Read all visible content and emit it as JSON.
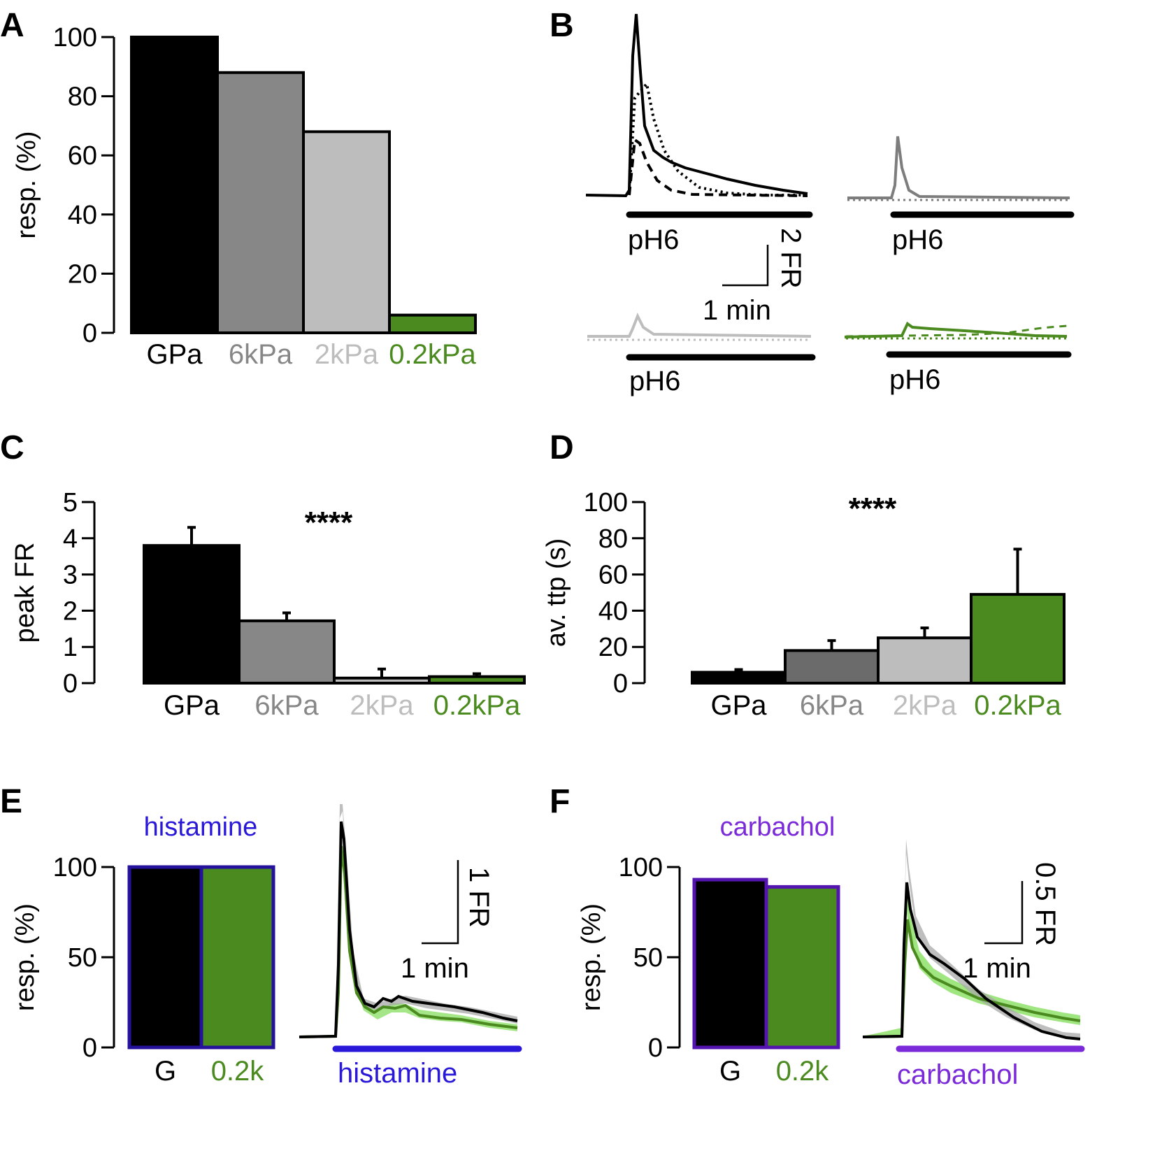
{
  "colors": {
    "gpa": "#000000",
    "k6": "#878787",
    "k2": "#bdbdbd",
    "k02": "#4a8a1e",
    "k02_light": "#8ee06a",
    "k6_bar_D": "#6b6b6b",
    "histamine": "#2a18d8",
    "histamine_bar_edge": "#24129c",
    "carbachol": "#7a2ad8",
    "carbachol_bar_edge": "#5414b0"
  },
  "panels": {
    "A": "A",
    "B": "B",
    "C": "C",
    "D": "D",
    "E": "E",
    "F": "F"
  },
  "chart_data": [
    {
      "id": "A",
      "type": "bar",
      "ylabel": "resp. (%)",
      "ylim": [
        0,
        100
      ],
      "yticks": [
        "0",
        "20",
        "40",
        "60",
        "80",
        "100"
      ],
      "categories": [
        "GPa",
        "6kPa",
        "2kPa",
        "0.2kPa"
      ],
      "values": [
        100,
        88,
        68,
        6
      ]
    },
    {
      "id": "B",
      "type": "line",
      "label": "pH6",
      "scale": {
        "y": "2 FR",
        "x": "1 min"
      },
      "traces": [
        "GPa",
        "6kPa",
        "2kPa",
        "0.2kPa"
      ]
    },
    {
      "id": "C",
      "type": "bar",
      "ylabel": "peak FR",
      "ylim": [
        0,
        5
      ],
      "yticks": [
        "0",
        "1",
        "2",
        "3",
        "4",
        "5"
      ],
      "categories": [
        "GPa",
        "6kPa",
        "2kPa",
        "0.2kPa"
      ],
      "values": [
        3.8,
        1.72,
        0.14,
        0.18
      ],
      "errors": [
        0.5,
        0.22,
        0.25,
        0.08
      ],
      "annotation": "****"
    },
    {
      "id": "D",
      "type": "bar",
      "ylabel": "av. ttp (s)",
      "ylim": [
        0,
        100
      ],
      "yticks": [
        "0",
        "20",
        "40",
        "60",
        "80",
        "100"
      ],
      "categories": [
        "GPa",
        "6kPa",
        "2kPa",
        "0.2kPa"
      ],
      "values": [
        6,
        18,
        25,
        49
      ],
      "errors": [
        1.5,
        5.5,
        5.5,
        25
      ],
      "annotation": "****"
    },
    {
      "id": "E",
      "type": "bar",
      "title": "histamine",
      "ylabel": "resp. (%)",
      "ylim": [
        0,
        100
      ],
      "yticks": [
        "0",
        "50",
        "100"
      ],
      "categories": [
        "G",
        "0.2k"
      ],
      "values": [
        100,
        100
      ],
      "trace_label": "histamine",
      "scale": {
        "y": "1 FR",
        "x": "1 min"
      }
    },
    {
      "id": "F",
      "type": "bar",
      "title": "carbachol",
      "ylabel": "resp. (%)",
      "ylim": [
        0,
        100
      ],
      "yticks": [
        "0",
        "50",
        "100"
      ],
      "categories": [
        "G",
        "0.2k"
      ],
      "values": [
        93,
        89
      ],
      "trace_label": "carbachol",
      "scale": {
        "y": "0.5 FR",
        "x": "1 min"
      }
    }
  ]
}
